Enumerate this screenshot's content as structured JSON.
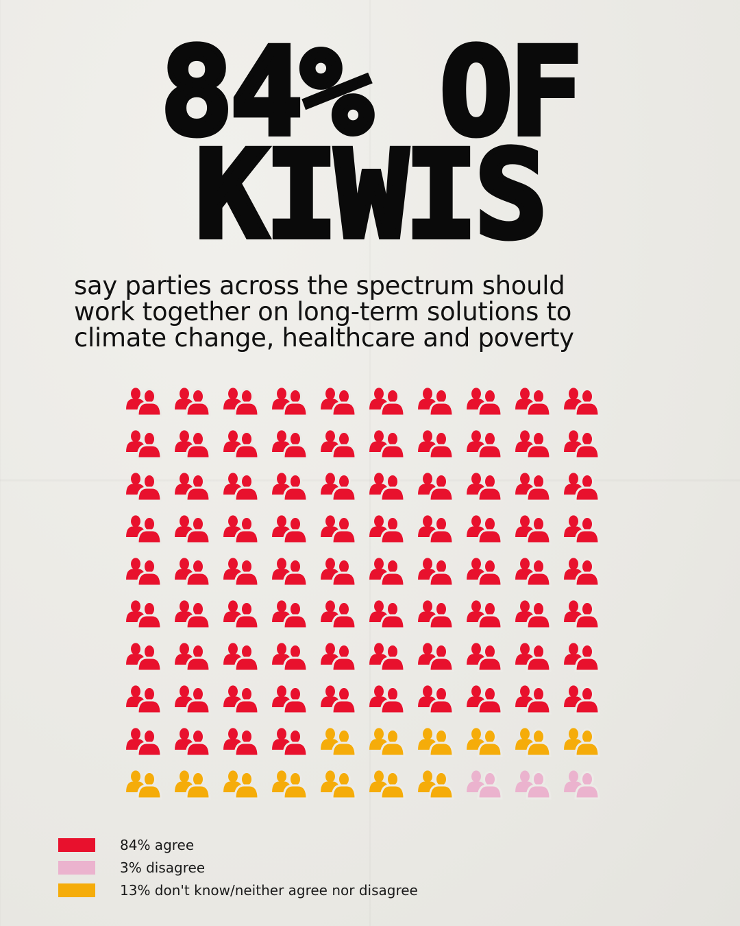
{
  "headline": {
    "line1": "84% OF",
    "line2": "KIWIS"
  },
  "subtitle": {
    "line1": "say parties across the spectrum should",
    "line2": "work together on long-term solutions to",
    "line3": "climate change, healthcare and poverty"
  },
  "chart_data": {
    "type": "waffle",
    "icon": "people-icon",
    "rows": 10,
    "columns": 10,
    "fill_order": "row-major",
    "series": [
      {
        "name": "84% agree",
        "value": 84,
        "color": "#e8112d"
      },
      {
        "name": "13% don't know/neither agree nor disagree",
        "value": 13,
        "color": "#f5ac0a"
      },
      {
        "name": "3% disagree",
        "value": 3,
        "color": "#ebb3ce"
      }
    ]
  },
  "legend": {
    "items": [
      {
        "label": "84% agree",
        "color": "#e8112d"
      },
      {
        "label": "3% disagree",
        "color": "#ebb3ce"
      },
      {
        "label": "13% don't know/neither agree nor disagree",
        "color": "#f5ac0a"
      }
    ]
  }
}
